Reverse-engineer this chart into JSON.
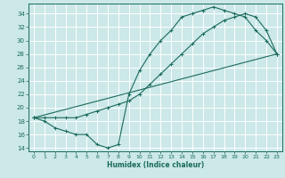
{
  "xlabel": "Humidex (Indice chaleur)",
  "bg_color": "#cce8e8",
  "grid_color": "#ffffff",
  "line_color": "#1a6b5a",
  "xlim": [
    -0.5,
    23.5
  ],
  "ylim": [
    13.5,
    35.5
  ],
  "xticks": [
    0,
    1,
    2,
    3,
    4,
    5,
    6,
    7,
    8,
    9,
    10,
    11,
    12,
    13,
    14,
    15,
    16,
    17,
    18,
    19,
    20,
    21,
    22,
    23
  ],
  "yticks": [
    14,
    16,
    18,
    20,
    22,
    24,
    26,
    28,
    30,
    32,
    34
  ],
  "curve1_x": [
    0,
    1,
    2,
    3,
    4,
    5,
    6,
    7,
    8,
    9,
    10,
    11,
    12,
    13,
    14,
    15,
    16,
    17,
    18,
    19,
    20,
    21,
    22,
    23
  ],
  "curve1_y": [
    18.5,
    18.0,
    17.0,
    16.5,
    16.0,
    16.0,
    14.5,
    14.0,
    14.5,
    22.0,
    25.5,
    28.0,
    30.0,
    31.5,
    33.5,
    34.0,
    34.5,
    35.0,
    34.5,
    34.0,
    33.5,
    31.5,
    30.0,
    28.0
  ],
  "curve2_x": [
    0,
    1,
    2,
    3,
    4,
    5,
    6,
    7,
    8,
    9,
    10,
    11,
    12,
    13,
    14,
    15,
    16,
    17,
    18,
    19,
    20,
    21,
    22,
    23
  ],
  "curve2_y": [
    18.5,
    18.5,
    18.5,
    18.5,
    18.5,
    19.0,
    19.5,
    20.0,
    20.5,
    21.0,
    22.0,
    23.5,
    25.0,
    26.5,
    28.0,
    29.5,
    31.0,
    32.0,
    33.0,
    33.5,
    34.0,
    33.5,
    31.5,
    28.0
  ],
  "line3_x": [
    0,
    23
  ],
  "line3_y": [
    18.5,
    28.0
  ]
}
